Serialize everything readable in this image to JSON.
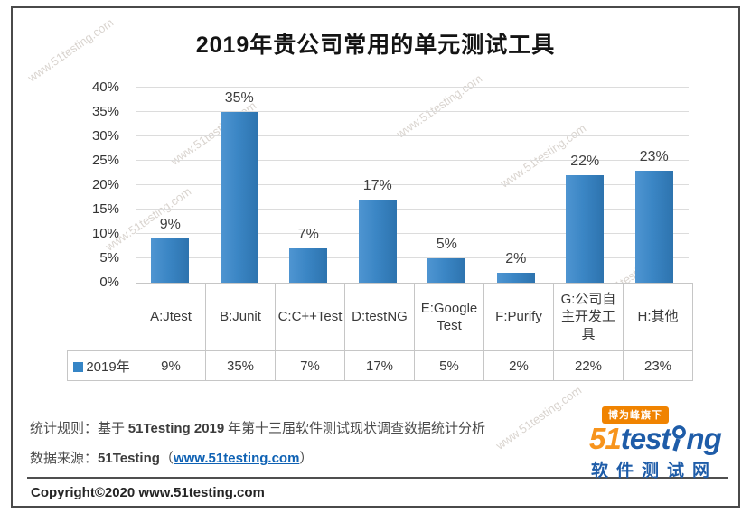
{
  "title": "2019年贵公司常用的单元测试工具",
  "watermark": "www.51testing.com",
  "chart_data": {
    "type": "bar",
    "title": "2019年贵公司常用的单元测试工具",
    "categories": [
      "A:Jtest",
      "B:Junit",
      "C:C++Test",
      "D:testNG",
      "E:Google Test",
      "F:Purify",
      "G:公司自主开发工具",
      "H:其他"
    ],
    "series": [
      {
        "name": "2019年",
        "values": [
          9,
          35,
          7,
          17,
          5,
          2,
          22,
          23
        ]
      }
    ],
    "value_labels": [
      "9%",
      "35%",
      "7%",
      "17%",
      "5%",
      "2%",
      "22%",
      "23%"
    ],
    "ylim": [
      0,
      40
    ],
    "yticks": [
      0,
      5,
      10,
      15,
      20,
      25,
      30,
      35,
      40
    ],
    "ytick_suffix": "%",
    "grid": true,
    "legend_position": "bottom-table-left",
    "bar_color": "#3585C6",
    "xlabel": "",
    "ylabel": ""
  },
  "footer": {
    "line1_label": "统计规则：",
    "line1_prefix": "基于 ",
    "line1_strong": "51Testing 2019",
    "line1_suffix": " 年第十三届软件测试现状调查数据统计分析",
    "line2_label": "数据来源：",
    "line2_brand": "51Testing",
    "line2_paren_open": "（",
    "line2_link": "www.51testing.com",
    "line2_paren_close": "）",
    "copyright": "Copyright©2020 www.51testing.com"
  },
  "logo": {
    "badge": "博为峰旗下",
    "brand_orange": "51",
    "brand_blue_1": "test",
    "brand_blue_2": "ng",
    "subtitle": "软件测试网",
    "colors": {
      "orange": "#F7941D",
      "blue": "#1E5CA8"
    }
  }
}
